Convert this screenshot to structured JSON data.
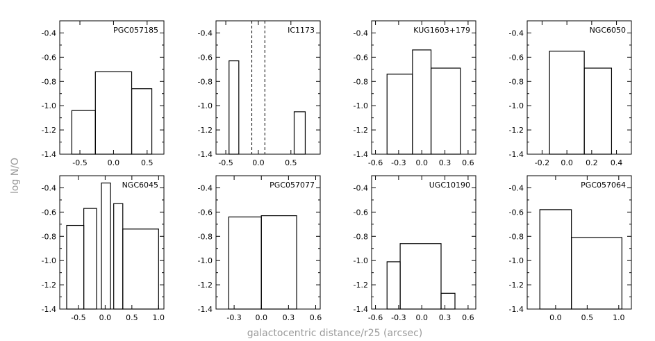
{
  "figure": {
    "ylabel": "log N/O",
    "xlabel": "galactocentric distance/r25 (arcsec)"
  },
  "chart_data": [
    {
      "type": "bar",
      "title": "PGC057185",
      "ylim": [
        -1.4,
        -0.3
      ],
      "xlim": [
        -0.8,
        0.75
      ],
      "xticks": [
        -0.5,
        0.0,
        0.5
      ],
      "xtick_labels": [
        "-0.5",
        "0.0",
        "0.5"
      ],
      "yticks": [
        -1.4,
        -1.2,
        -1.0,
        -0.8,
        -0.6,
        -0.4
      ],
      "ytick_labels": [
        "-1.4",
        "-1.2",
        "-1.0",
        "-0.8",
        "-0.6",
        "-0.4"
      ],
      "bins": [
        {
          "x0": -0.62,
          "x1": -0.27,
          "value": -1.04
        },
        {
          "x0": -0.27,
          "x1": 0.27,
          "value": -0.72
        },
        {
          "x0": 0.27,
          "x1": 0.57,
          "value": -0.86
        }
      ],
      "vlines": []
    },
    {
      "type": "bar",
      "title": "IC1173",
      "ylim": [
        -1.4,
        -0.3
      ],
      "xlim": [
        -0.65,
        0.95
      ],
      "xticks": [
        -0.5,
        0.0,
        0.5
      ],
      "xtick_labels": [
        "-0.5",
        "0.0",
        "0.5"
      ],
      "yticks": [
        -1.4,
        -1.2,
        -1.0,
        -0.8,
        -0.6,
        -0.4
      ],
      "ytick_labels": [
        "-1.4",
        "-1.2",
        "-1.0",
        "-0.8",
        "-0.6",
        "-0.4"
      ],
      "bins": [
        {
          "x0": -0.45,
          "x1": -0.3,
          "value": -0.63
        },
        {
          "x0": 0.55,
          "x1": 0.72,
          "value": -1.05
        }
      ],
      "vlines": [
        -0.1,
        0.1
      ]
    },
    {
      "type": "bar",
      "title": "KUG1603+179",
      "ylim": [
        -1.4,
        -0.3
      ],
      "xlim": [
        -0.65,
        0.7
      ],
      "xticks": [
        -0.6,
        -0.3,
        0.0,
        0.3,
        0.6
      ],
      "xtick_labels": [
        "-0.6",
        "-0.3",
        "0.0",
        "0.3",
        "0.6"
      ],
      "yticks": [
        -1.4,
        -1.2,
        -1.0,
        -0.8,
        -0.6,
        -0.4
      ],
      "ytick_labels": [
        "-1.4",
        "-1.2",
        "-1.0",
        "-0.8",
        "-0.6",
        "-0.4"
      ],
      "bins": [
        {
          "x0": -0.45,
          "x1": -0.12,
          "value": -0.74
        },
        {
          "x0": -0.12,
          "x1": 0.12,
          "value": -0.54
        },
        {
          "x0": 0.12,
          "x1": 0.5,
          "value": -0.69
        }
      ],
      "vlines": []
    },
    {
      "type": "bar",
      "title": "NGC6050",
      "ylim": [
        -1.4,
        -0.3
      ],
      "xlim": [
        -0.32,
        0.52
      ],
      "xticks": [
        -0.2,
        0.0,
        0.2,
        0.4
      ],
      "xtick_labels": [
        "-0.2",
        "0.0",
        "0.2",
        "0.4"
      ],
      "yticks": [
        -1.4,
        -1.2,
        -1.0,
        -0.8,
        -0.6,
        -0.4
      ],
      "ytick_labels": [
        "-1.4",
        "-1.2",
        "-1.0",
        "-0.8",
        "-0.6",
        "-0.4"
      ],
      "bins": [
        {
          "x0": -0.14,
          "x1": 0.14,
          "value": -0.55
        },
        {
          "x0": 0.14,
          "x1": 0.36,
          "value": -0.69
        }
      ],
      "vlines": []
    },
    {
      "type": "bar",
      "title": "NGC6045",
      "ylim": [
        -1.4,
        -0.3
      ],
      "xlim": [
        -0.85,
        1.1
      ],
      "xticks": [
        -0.5,
        0.0,
        0.5,
        1.0
      ],
      "xtick_labels": [
        "-0.5",
        "0.0",
        "0.5",
        "1.0"
      ],
      "yticks": [
        -1.4,
        -1.2,
        -1.0,
        -0.8,
        -0.6,
        -0.4
      ],
      "ytick_labels": [
        "-1.4",
        "-1.2",
        "-1.0",
        "-0.8",
        "-0.6",
        "-0.4"
      ],
      "bins": [
        {
          "x0": -0.72,
          "x1": -0.4,
          "value": -0.71
        },
        {
          "x0": -0.4,
          "x1": -0.16,
          "value": -0.57
        },
        {
          "x0": -0.07,
          "x1": 0.1,
          "value": -0.36
        },
        {
          "x0": 0.16,
          "x1": 0.33,
          "value": -0.53
        },
        {
          "x0": 0.33,
          "x1": 1.0,
          "value": -0.74
        }
      ],
      "vlines": []
    },
    {
      "type": "bar",
      "title": "PGC057077",
      "ylim": [
        -1.4,
        -0.3
      ],
      "xlim": [
        -0.5,
        0.65
      ],
      "xticks": [
        -0.3,
        0.0,
        0.3,
        0.6
      ],
      "xtick_labels": [
        "-0.3",
        "0.0",
        "0.3",
        "0.6"
      ],
      "yticks": [
        -1.4,
        -1.2,
        -1.0,
        -0.8,
        -0.6,
        -0.4
      ],
      "ytick_labels": [
        "-1.4",
        "-1.2",
        "-1.0",
        "-0.8",
        "-0.6",
        "-0.4"
      ],
      "bins": [
        {
          "x0": -0.36,
          "x1": 0.0,
          "value": -0.64
        },
        {
          "x0": 0.0,
          "x1": 0.39,
          "value": -0.63
        }
      ],
      "vlines": []
    },
    {
      "type": "bar",
      "title": "UGC10190",
      "ylim": [
        -1.4,
        -0.3
      ],
      "xlim": [
        -0.65,
        0.7
      ],
      "xticks": [
        -0.6,
        -0.3,
        0.0,
        0.3,
        0.6
      ],
      "xtick_labels": [
        "-0.6",
        "-0.3",
        "0.0",
        "0.3",
        "0.6"
      ],
      "yticks": [
        -1.4,
        -1.2,
        -1.0,
        -0.8,
        -0.6,
        -0.4
      ],
      "ytick_labels": [
        "-1.4",
        "-1.2",
        "-1.0",
        "-0.8",
        "-0.6",
        "-0.4"
      ],
      "bins": [
        {
          "x0": -0.45,
          "x1": -0.28,
          "value": -1.01
        },
        {
          "x0": -0.28,
          "x1": 0.25,
          "value": -0.86
        },
        {
          "x0": 0.25,
          "x1": 0.43,
          "value": -1.27
        }
      ],
      "vlines": []
    },
    {
      "type": "bar",
      "title": "PGC057064",
      "ylim": [
        -1.4,
        -0.3
      ],
      "xlim": [
        -0.45,
        1.2
      ],
      "xticks": [
        0.0,
        0.5,
        1.0
      ],
      "xtick_labels": [
        "0.0",
        "0.5",
        "1.0"
      ],
      "yticks": [
        -1.4,
        -1.2,
        -1.0,
        -0.8,
        -0.6,
        -0.4
      ],
      "ytick_labels": [
        "-1.4",
        "-1.2",
        "-1.0",
        "-0.8",
        "-0.6",
        "-0.4"
      ],
      "bins": [
        {
          "x0": -0.25,
          "x1": 0.25,
          "value": -0.58
        },
        {
          "x0": 0.25,
          "x1": 1.05,
          "value": -0.81
        }
      ],
      "vlines": []
    }
  ]
}
